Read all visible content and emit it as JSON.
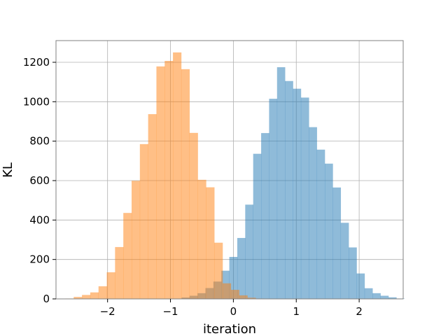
{
  "chart_data": {
    "type": "bar",
    "subtype": "histogram",
    "xlabel": "iteration",
    "ylabel": "KL",
    "xlim": [
      -2.82,
      2.7
    ],
    "ylim": [
      0,
      1310
    ],
    "xticks": [
      -2,
      -1,
      0,
      1,
      2
    ],
    "xtick_labels": [
      "−2",
      "−1",
      "0",
      "1",
      "2"
    ],
    "yticks": [
      0,
      200,
      400,
      600,
      800,
      1000,
      1200
    ],
    "ytick_labels": [
      "0",
      "200",
      "400",
      "600",
      "800",
      "1000",
      "1200"
    ],
    "grid": true,
    "legend": "none",
    "series": [
      {
        "color": "#1f77b4",
        "alpha": 0.5,
        "bin_start": -0.95,
        "bin_width": 0.1265,
        "values": [
          1,
          7,
          16,
          29,
          55,
          88,
          143,
          213,
          309,
          478,
          736,
          841,
          1015,
          1175,
          1105,
          1066,
          1021,
          871,
          757,
          686,
          565,
          386,
          261,
          129,
          54,
          29,
          16,
          8,
          2
        ]
      },
      {
        "color": "#ff7f0e",
        "alpha": 0.5,
        "bin_start": -2.67,
        "bin_width": 0.1315,
        "values": [
          2,
          10,
          20,
          33,
          64,
          135,
          263,
          436,
          599,
          785,
          937,
          1179,
          1207,
          1250,
          1165,
          842,
          604,
          566,
          285,
          79,
          46,
          18,
          6,
          2
        ]
      }
    ]
  }
}
